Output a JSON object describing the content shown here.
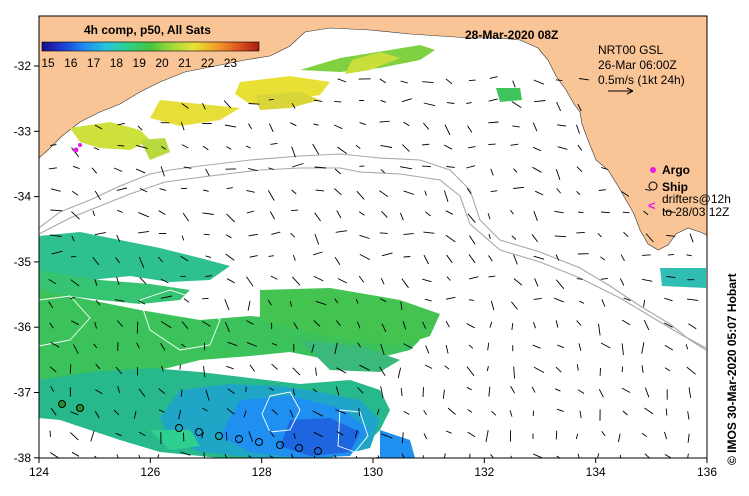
{
  "title": "28-Mar-2020 08Z",
  "colorbar": {
    "title": "4h comp, p50, All Sats",
    "ticks": [
      "15",
      "16",
      "17",
      "18",
      "19",
      "20",
      "21",
      "22",
      "23"
    ],
    "stops": [
      "#1a0d8a",
      "#1e3fd6",
      "#1f8ff0",
      "#26c7d8",
      "#2fd08a",
      "#46c43b",
      "#a4d93a",
      "#e8e234",
      "#f3a02c",
      "#e0581f",
      "#a81a12"
    ]
  },
  "info": {
    "line1": "NRT00 GSL",
    "line2": "26-Mar 06:00Z",
    "line3": "0.5m/s (1kt 24h)"
  },
  "legend": {
    "argo": "Argo",
    "ship": "Ship",
    "drifters_line1": "drifters@12h",
    "drifters_line2": "to 28/03 12Z"
  },
  "axes": {
    "x_ticks": [
      "124",
      "126",
      "128",
      "130",
      "132",
      "134",
      "136"
    ],
    "y_ticks": [
      "-32",
      "-33",
      "-34",
      "-35",
      "-36",
      "-37",
      "-38"
    ]
  },
  "credit": "© IMOS 30-Mar-2020 05:07 Hobart",
  "colors": {
    "land": "#f9c596",
    "ocean": "#ffffff",
    "argo": "#e619e6",
    "bathy": "#a8a8a8"
  }
}
